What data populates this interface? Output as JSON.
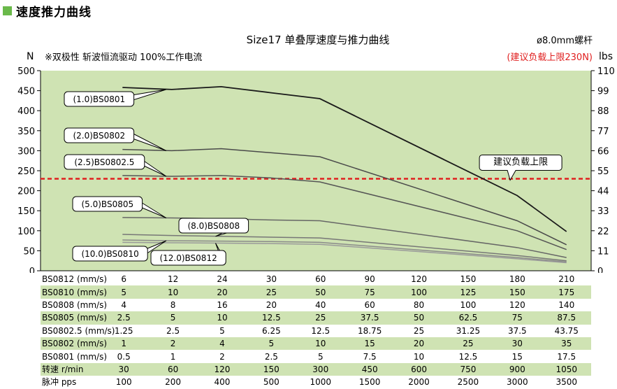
{
  "heading": "速度推力曲线",
  "chart_data": {
    "type": "line",
    "title": "Size17 单叠厚速度与推力曲线",
    "subtitle": "※双极性 斩波恒流驱动 100%工作电流",
    "note_right": "ø8.0mm螺杆",
    "limit_note": "(建议负载上限230N)",
    "ylabel_left": "N",
    "ylabel_right": "lbs",
    "ylim": [
      0,
      500
    ],
    "y_ticks": [
      0,
      50,
      100,
      150,
      200,
      250,
      300,
      350,
      400,
      450,
      500
    ],
    "y2_ticks": [
      0,
      11,
      22,
      33,
      44,
      55,
      66,
      77,
      88,
      99,
      110
    ],
    "grid": false,
    "x_index": [
      0,
      1,
      2,
      3,
      4,
      5,
      6,
      7,
      8,
      9
    ],
    "limit_line": {
      "label": "建议负载上限",
      "value": 230,
      "color": "#e02020"
    },
    "series": [
      {
        "name": "(1.0)BS0801",
        "values": [
          458,
          453,
          460,
          445,
          430,
          null,
          null,
          null,
          188,
          98
        ],
        "color": "#1a1a1a",
        "label_anchor": 1
      },
      {
        "name": "(2.0)BS0802",
        "values": [
          303,
          300,
          305,
          295,
          285,
          null,
          null,
          null,
          125,
          65
        ],
        "color": "#4a4a4a",
        "label_anchor": 1
      },
      {
        "name": "(2.5)BS0802.5",
        "values": [
          238,
          236,
          238,
          232,
          222,
          null,
          null,
          null,
          100,
          53
        ],
        "color": "#555555",
        "label_anchor": 1
      },
      {
        "name": "(5.0)BS0805",
        "values": [
          133,
          132,
          130,
          127,
          125,
          null,
          null,
          null,
          58,
          33
        ],
        "color": "#666666",
        "label_anchor": 1
      },
      {
        "name": "(8.0)BS0808",
        "values": [
          91,
          88,
          86,
          84,
          82,
          null,
          null,
          null,
          38,
          25
        ],
        "color": "#777777",
        "label_anchor": 2
      },
      {
        "name": "(10.0)BS0810",
        "values": [
          77,
          75,
          74,
          73,
          71,
          null,
          null,
          null,
          33,
          22
        ],
        "color": "#8a8a8a",
        "label_anchor": 1
      },
      {
        "name": "(12.0)BS0812",
        "values": [
          71,
          70,
          69,
          68,
          66,
          null,
          null,
          null,
          30,
          20
        ],
        "color": "#9a9a9a",
        "label_anchor": 2
      }
    ]
  },
  "table": {
    "rows": [
      {
        "label": "BS0812 (mm/s)",
        "values": [
          "6",
          "12",
          "24",
          "30",
          "60",
          "90",
          "120",
          "150",
          "180",
          "210"
        ],
        "green": false
      },
      {
        "label": "BS0810 (mm/s)",
        "values": [
          "5",
          "10",
          "20",
          "25",
          "50",
          "75",
          "100",
          "125",
          "150",
          "175"
        ],
        "green": true
      },
      {
        "label": "BS0808 (mm/s)",
        "values": [
          "4",
          "8",
          "16",
          "20",
          "40",
          "60",
          "80",
          "100",
          "120",
          "140"
        ],
        "green": false
      },
      {
        "label": "BS0805 (mm/s)",
        "values": [
          "2.5",
          "5",
          "10",
          "12.5",
          "25",
          "37.5",
          "50",
          "62.5",
          "75",
          "87.5"
        ],
        "green": true
      },
      {
        "label": "BS0802.5 (mm/s)",
        "values": [
          "1.25",
          "2.5",
          "5",
          "6.25",
          "12.5",
          "18.75",
          "25",
          "31.25",
          "37.5",
          "43.75"
        ],
        "green": false
      },
      {
        "label": "BS0802 (mm/s)",
        "values": [
          "1",
          "2",
          "4",
          "5",
          "10",
          "15",
          "20",
          "25",
          "30",
          "35"
        ],
        "green": true
      },
      {
        "label": "BS0801 (mm/s)",
        "values": [
          "0.5",
          "1",
          "2",
          "2.5",
          "5",
          "7.5",
          "10",
          "12.5",
          "15",
          "17.5"
        ],
        "green": false
      },
      {
        "label": "转速 r/min",
        "values": [
          "30",
          "60",
          "120",
          "150",
          "300",
          "450",
          "600",
          "750",
          "900",
          "1050"
        ],
        "green": true
      },
      {
        "label": "脉冲 pps",
        "values": [
          "100",
          "200",
          "400",
          "500",
          "1000",
          "1500",
          "2000",
          "2500",
          "3000",
          "3500"
        ],
        "green": false
      }
    ]
  },
  "colors": {
    "plot_bg": "#cfe3b3",
    "accent_green": "#6ab94a",
    "limit_red": "#e02020"
  }
}
